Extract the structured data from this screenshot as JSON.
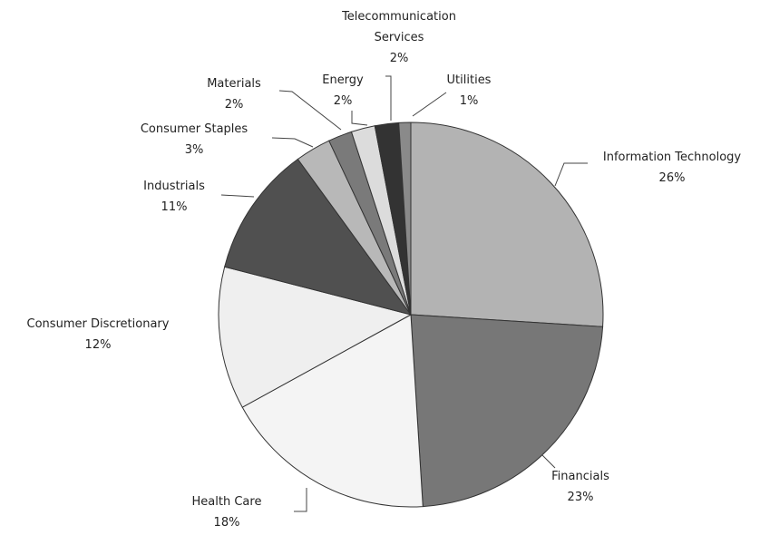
{
  "chart_data": {
    "type": "pie",
    "categories": [
      "Information Technology",
      "Financials",
      "Health Care",
      "Consumer Discretionary",
      "Industrials",
      "Consumer Staples",
      "Materials",
      "Energy",
      "Telecommunication Services",
      "Utilities"
    ],
    "values": [
      26,
      23,
      18,
      12,
      11,
      3,
      2,
      2,
      2,
      1
    ],
    "value_labels": [
      "26%",
      "23%",
      "18%",
      "12%",
      "11%",
      "3%",
      "2%",
      "2%",
      "2%",
      "1%"
    ],
    "colors": [
      "#b3b3b3",
      "#777777",
      "#f4f4f4",
      "#efefef",
      "#505050",
      "#b8b8b8",
      "#7a7a7a",
      "#dcdcdc",
      "#333333",
      "#8a8a8a"
    ]
  }
}
